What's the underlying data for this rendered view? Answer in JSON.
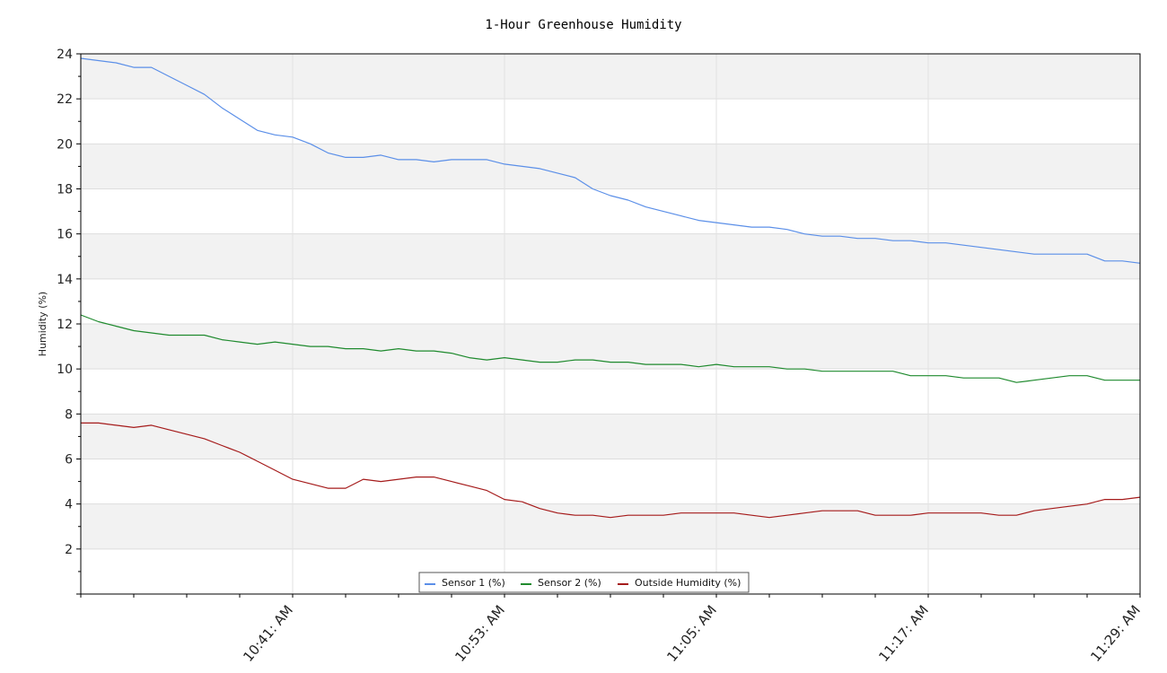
{
  "chart_data": {
    "type": "line",
    "title": "1-Hour Greenhouse Humidity",
    "ylabel": "Humidity (%)",
    "xlabel": "",
    "ylim": [
      0,
      24
    ],
    "xlim": [
      0,
      60
    ],
    "yticks": [
      2,
      4,
      6,
      8,
      10,
      12,
      14,
      16,
      18,
      20,
      22,
      24
    ],
    "xticks": [
      {
        "x": 12,
        "label": "10:41: AM"
      },
      {
        "x": 24,
        "label": "10:53: AM"
      },
      {
        "x": 36,
        "label": "11:05: AM"
      },
      {
        "x": 48,
        "label": "11:17: AM"
      },
      {
        "x": 60,
        "label": "11:29: AM"
      }
    ],
    "grid": "horizontal alternating bands with vertical lines",
    "legend_position": "bottom-center",
    "series": [
      {
        "name": "Sensor 1 (%)",
        "color": "#5b8fe8",
        "x": [
          0,
          2,
          3,
          4,
          5,
          6,
          7,
          8,
          9,
          10,
          11,
          12,
          13,
          14,
          15,
          16,
          17,
          18,
          19,
          20,
          21,
          22,
          23,
          24,
          25,
          26,
          27,
          28,
          29,
          30,
          31,
          32,
          33,
          34,
          35,
          36,
          37,
          38,
          39,
          40,
          41,
          42,
          43,
          44,
          45,
          46,
          47,
          48,
          49,
          50,
          51,
          52,
          53,
          54,
          55,
          56,
          57,
          58,
          59,
          60
        ],
        "values": [
          23.8,
          23.6,
          23.4,
          23.4,
          23.0,
          22.6,
          22.2,
          21.6,
          21.1,
          20.6,
          20.4,
          20.3,
          20.0,
          19.6,
          19.4,
          19.4,
          19.5,
          19.3,
          19.3,
          19.2,
          19.3,
          19.3,
          19.3,
          19.1,
          19.0,
          18.9,
          18.7,
          18.5,
          18.0,
          17.7,
          17.5,
          17.2,
          17.0,
          16.8,
          16.6,
          16.5,
          16.4,
          16.3,
          16.3,
          16.2,
          16.0,
          15.9,
          15.9,
          15.8,
          15.8,
          15.7,
          15.7,
          15.6,
          15.6,
          15.5,
          15.4,
          15.3,
          15.2,
          15.1,
          15.1,
          15.1,
          15.1,
          14.8,
          14.8,
          14.7
        ]
      },
      {
        "name": "Sensor 2 (%)",
        "color": "#1f8a2e",
        "x": [
          0,
          1,
          2,
          3,
          4,
          5,
          6,
          7,
          8,
          9,
          10,
          11,
          12,
          13,
          14,
          15,
          16,
          17,
          18,
          19,
          20,
          21,
          22,
          23,
          24,
          25,
          26,
          27,
          28,
          29,
          30,
          31,
          32,
          33,
          34,
          35,
          36,
          37,
          38,
          39,
          40,
          41,
          42,
          43,
          44,
          45,
          46,
          47,
          48,
          49,
          50,
          51,
          52,
          53,
          54,
          55,
          56,
          57,
          58,
          59,
          60
        ],
        "values": [
          12.4,
          12.1,
          11.9,
          11.7,
          11.6,
          11.5,
          11.5,
          11.5,
          11.3,
          11.2,
          11.1,
          11.2,
          11.1,
          11.0,
          11.0,
          10.9,
          10.9,
          10.8,
          10.9,
          10.8,
          10.8,
          10.7,
          10.5,
          10.4,
          10.5,
          10.4,
          10.3,
          10.3,
          10.4,
          10.4,
          10.3,
          10.3,
          10.2,
          10.2,
          10.2,
          10.1,
          10.2,
          10.1,
          10.1,
          10.1,
          10.0,
          10.0,
          9.9,
          9.9,
          9.9,
          9.9,
          9.9,
          9.7,
          9.7,
          9.7,
          9.6,
          9.6,
          9.6,
          9.4,
          9.5,
          9.6,
          9.7,
          9.7,
          9.5,
          9.5,
          9.5
        ]
      },
      {
        "name": "Outside Humidity (%)",
        "color": "#a51b1b",
        "x": [
          0,
          1,
          2,
          3,
          4,
          5,
          6,
          7,
          8,
          9,
          10,
          11,
          12,
          13,
          14,
          15,
          16,
          17,
          18,
          19,
          20,
          21,
          22,
          23,
          24,
          25,
          26,
          27,
          28,
          29,
          30,
          31,
          32,
          33,
          34,
          35,
          36,
          37,
          38,
          39,
          40,
          41,
          42,
          43,
          44,
          45,
          46,
          47,
          48,
          49,
          50,
          51,
          52,
          53,
          54,
          55,
          56,
          57,
          58,
          59,
          60
        ],
        "values": [
          7.6,
          7.6,
          7.5,
          7.4,
          7.5,
          7.3,
          7.1,
          6.9,
          6.6,
          6.3,
          5.9,
          5.5,
          5.1,
          4.9,
          4.7,
          4.7,
          5.1,
          5.0,
          5.1,
          5.2,
          5.2,
          5.0,
          4.8,
          4.6,
          4.2,
          4.1,
          3.8,
          3.6,
          3.5,
          3.5,
          3.4,
          3.5,
          3.5,
          3.5,
          3.6,
          3.6,
          3.6,
          3.6,
          3.5,
          3.4,
          3.5,
          3.6,
          3.7,
          3.7,
          3.7,
          3.5,
          3.5,
          3.5,
          3.6,
          3.6,
          3.6,
          3.6,
          3.5,
          3.5,
          3.7,
          3.8,
          3.9,
          4.0,
          4.2,
          4.2,
          4.3
        ]
      }
    ]
  }
}
